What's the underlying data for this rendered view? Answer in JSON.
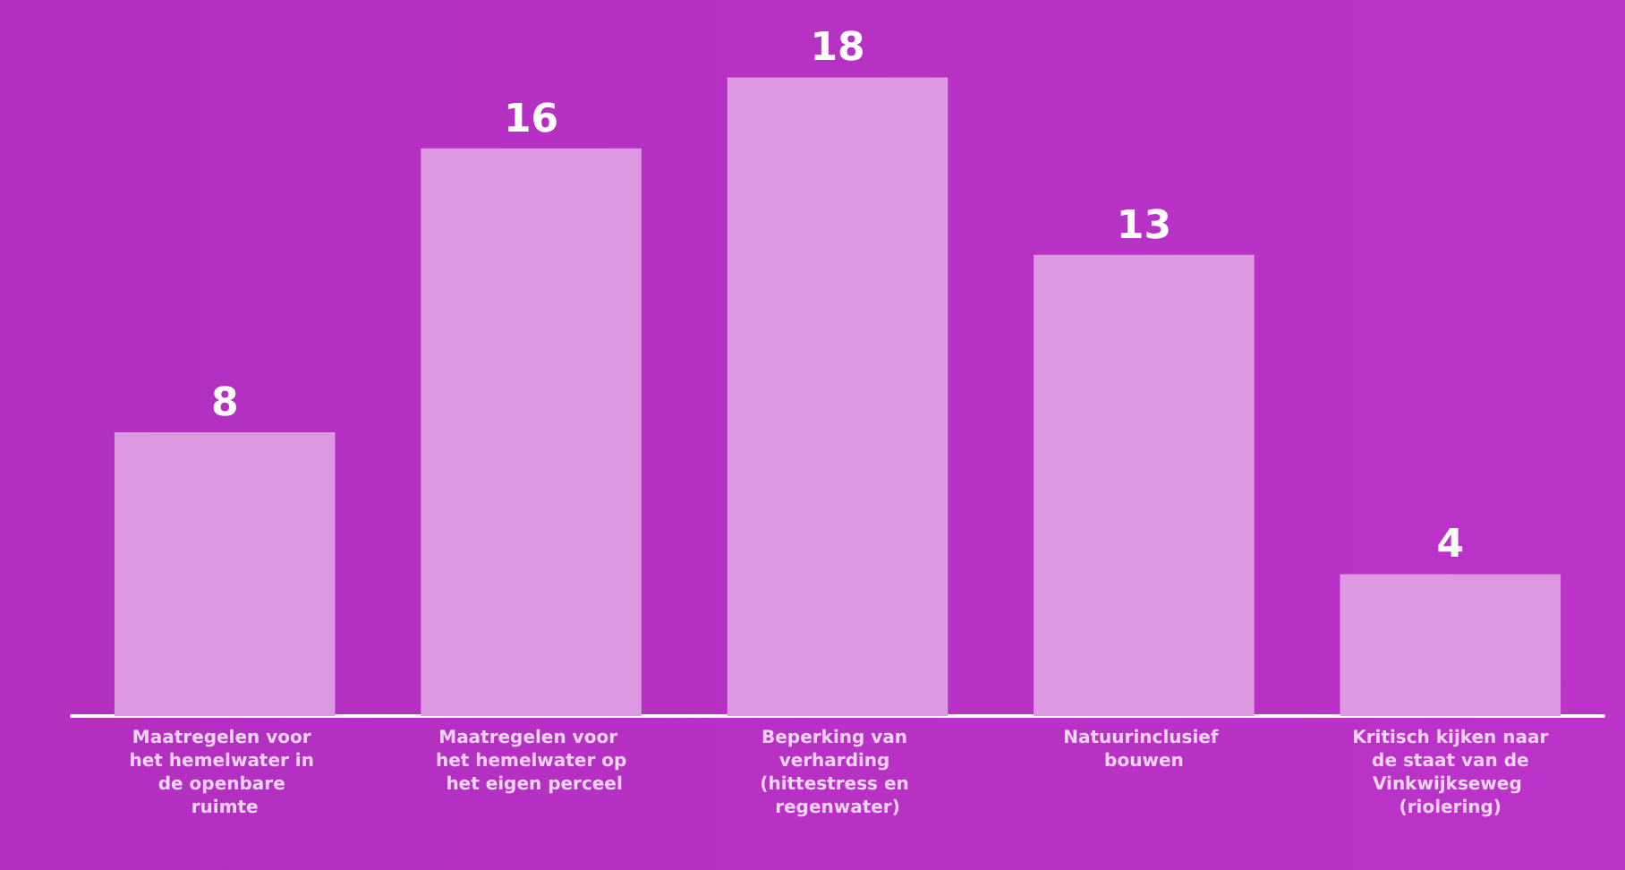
{
  "chart_data": {
    "type": "bar",
    "categories": [
      "Maatregelen voor het hemelwater in de openbare ruimte",
      "Maatregelen voor het hemelwater op het eigen perceel",
      "Beperking van verharding (hittestress en regenwater)",
      "Natuurinclusief bouwen",
      "Kritisch kijken naar de staat van de Vinkwijkseweg (riolering)"
    ],
    "values": [
      8,
      16,
      18,
      13,
      4
    ],
    "color": "#dc98e0",
    "data_labels": true
  }
}
